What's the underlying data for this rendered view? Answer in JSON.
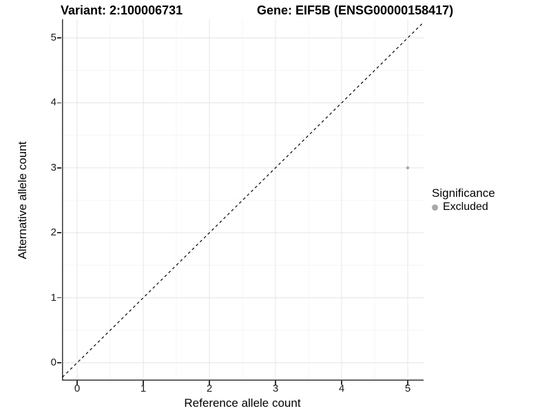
{
  "titles": {
    "variant": "Variant: 2:100006731",
    "gene": "Gene: EIF5B (ENSG00000158417)"
  },
  "axes": {
    "x_label": "Reference allele count",
    "y_label": "Alternative allele count"
  },
  "legend": {
    "title": "Significance",
    "items": [
      {
        "label": "Excluded",
        "color": "#a8a8a8",
        "marker": "circle-icon"
      }
    ]
  },
  "colors": {
    "background": "#ffffff",
    "axis_line": "#333333",
    "grid_major": "#e8e8e8",
    "grid_minor": "#f4f4f4",
    "reference_line": "#000000",
    "point": "#a8a8a8",
    "text": "#000000"
  },
  "chart_data": {
    "type": "scatter",
    "title": "Variant: 2:100006731   Gene: EIF5B (ENSG00000158417)",
    "xlabel": "Reference allele count",
    "ylabel": "Alternative allele count",
    "xlim": [
      -0.25,
      5.25
    ],
    "ylim": [
      -0.25,
      5.25
    ],
    "x_ticks": [
      0,
      1,
      2,
      3,
      4,
      5
    ],
    "y_ticks": [
      0,
      1,
      2,
      3,
      4,
      5
    ],
    "grid": "major and minor gridlines on, white background",
    "legend_position": "right",
    "series": [
      {
        "name": "Excluded",
        "color": "#a8a8a8",
        "marker_size": 2.2,
        "points": [
          {
            "x": 5,
            "y": 3
          }
        ]
      }
    ],
    "reference_line": {
      "type": "identity y=x",
      "style": "dashed",
      "color": "#000000"
    }
  }
}
